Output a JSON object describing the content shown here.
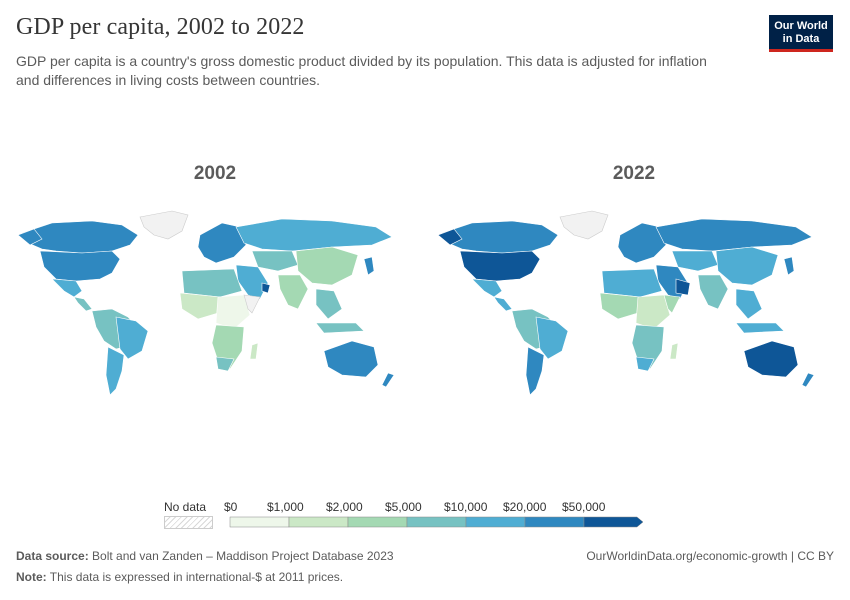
{
  "header": {
    "title": "GDP per capita, 2002 to 2022",
    "subtitle": "GDP per capita is a country's gross domestic product divided by its population. This data is adjusted for inflation and differences in living costs between countries.",
    "logo_line1": "Our World",
    "logo_line2": "in Data"
  },
  "maps": [
    {
      "year": "2002"
    },
    {
      "year": "2022"
    }
  ],
  "legend": {
    "no_data_label": "No data",
    "bins": [
      "$0",
      "$1,000",
      "$2,000",
      "$5,000",
      "$10,000",
      "$20,000",
      "$50,000"
    ],
    "colors": [
      "#eef7ea",
      "#cbe8c6",
      "#a4d9b3",
      "#77c2c2",
      "#4fadd3",
      "#2f88c0",
      "#0e5697"
    ]
  },
  "footer": {
    "source_label": "Data source:",
    "source_text": "Bolt and van Zanden – Maddison Project Database 2023",
    "note_label": "Note:",
    "note_text": "This data is expressed in international-$ at 2011 prices.",
    "url_text": "OurWorldinData.org/economic-growth | CC BY"
  }
}
